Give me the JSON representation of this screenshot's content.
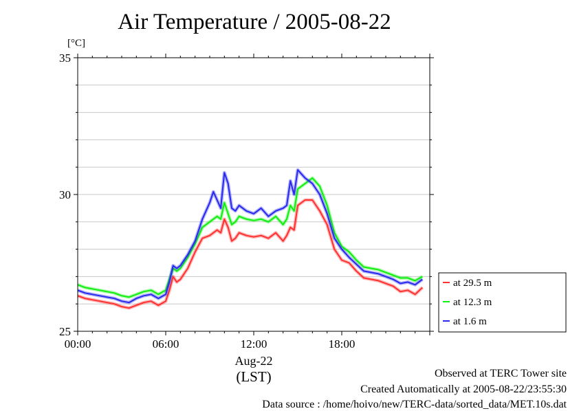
{
  "chart_data": {
    "type": "line",
    "title": "Air Temperature / 2005-08-22",
    "y_unit": "[°C]",
    "ylim": [
      25,
      35
    ],
    "y_ticks": [
      "25",
      "30",
      "35"
    ],
    "xlim": [
      0,
      24
    ],
    "x_ticks": [
      "00:00",
      "06:00",
      "12:00",
      "18:00"
    ],
    "x_date_label": "Aug-22",
    "x_tz_label": "(LST)",
    "grid": true,
    "legend_position": "right",
    "x": [
      0,
      0.5,
      1,
      1.5,
      2,
      2.5,
      3,
      3.5,
      4,
      4.5,
      5,
      5.5,
      6,
      6.25,
      6.5,
      6.75,
      7,
      7.5,
      8,
      8.5,
      9,
      9.25,
      9.5,
      9.75,
      10,
      10.25,
      10.5,
      10.75,
      11,
      11.5,
      12,
      12.5,
      13,
      13.5,
      14,
      14.25,
      14.5,
      14.75,
      15,
      15.5,
      16,
      16.5,
      17,
      17.5,
      18,
      18.5,
      19,
      19.5,
      20,
      20.5,
      21,
      21.5,
      22,
      22.5,
      23,
      23.5
    ],
    "series": [
      {
        "name": "at 29.5 m",
        "color": "#ff3030",
        "values": [
          26.3,
          26.2,
          26.15,
          26.1,
          26.05,
          26.0,
          25.9,
          25.85,
          25.95,
          26.05,
          26.1,
          25.95,
          26.1,
          26.5,
          27.0,
          26.8,
          26.9,
          27.3,
          27.9,
          28.4,
          28.5,
          28.6,
          28.7,
          28.6,
          29.1,
          28.8,
          28.3,
          28.4,
          28.6,
          28.5,
          28.45,
          28.5,
          28.4,
          28.6,
          28.3,
          28.5,
          28.8,
          28.7,
          29.6,
          29.8,
          29.8,
          29.4,
          28.9,
          28.0,
          27.6,
          27.5,
          27.2,
          26.95,
          26.9,
          26.85,
          26.75,
          26.65,
          26.45,
          26.5,
          26.35,
          26.6
        ]
      },
      {
        "name": "at 12.3 m",
        "color": "#10ee10",
        "values": [
          26.7,
          26.6,
          26.55,
          26.5,
          26.45,
          26.4,
          26.3,
          26.25,
          26.35,
          26.45,
          26.5,
          26.35,
          26.5,
          26.9,
          27.3,
          27.2,
          27.3,
          27.7,
          28.2,
          28.8,
          29.0,
          29.1,
          29.2,
          29.1,
          29.7,
          29.3,
          28.9,
          29.0,
          29.2,
          29.1,
          29.05,
          29.1,
          29.0,
          29.2,
          28.9,
          29.1,
          29.6,
          29.4,
          30.2,
          30.4,
          30.6,
          30.3,
          29.6,
          28.6,
          28.1,
          27.9,
          27.6,
          27.35,
          27.3,
          27.25,
          27.15,
          27.05,
          26.95,
          26.95,
          26.85,
          27.0
        ]
      },
      {
        "name": "at 1.6 m",
        "color": "#2828ee",
        "values": [
          26.5,
          26.4,
          26.35,
          26.3,
          26.25,
          26.2,
          26.1,
          26.05,
          26.2,
          26.3,
          26.35,
          26.2,
          26.35,
          26.8,
          27.4,
          27.3,
          27.4,
          27.8,
          28.3,
          29.1,
          29.7,
          30.1,
          29.8,
          29.5,
          30.8,
          30.4,
          29.5,
          29.4,
          29.6,
          29.4,
          29.3,
          29.5,
          29.2,
          29.4,
          29.5,
          29.6,
          30.5,
          30.0,
          30.9,
          30.6,
          30.4,
          30.0,
          29.3,
          28.4,
          28.0,
          27.7,
          27.45,
          27.2,
          27.15,
          27.1,
          27.0,
          26.9,
          26.75,
          26.8,
          26.7,
          26.9
        ]
      }
    ]
  },
  "footer": {
    "site": "Observed at TERC Tower site",
    "created": "Created Automatically at 2005-08-22/23:55:30",
    "source": "Data source : /home/hoivo/new/TERC-data/sorted_data/MET.10s.dat"
  }
}
